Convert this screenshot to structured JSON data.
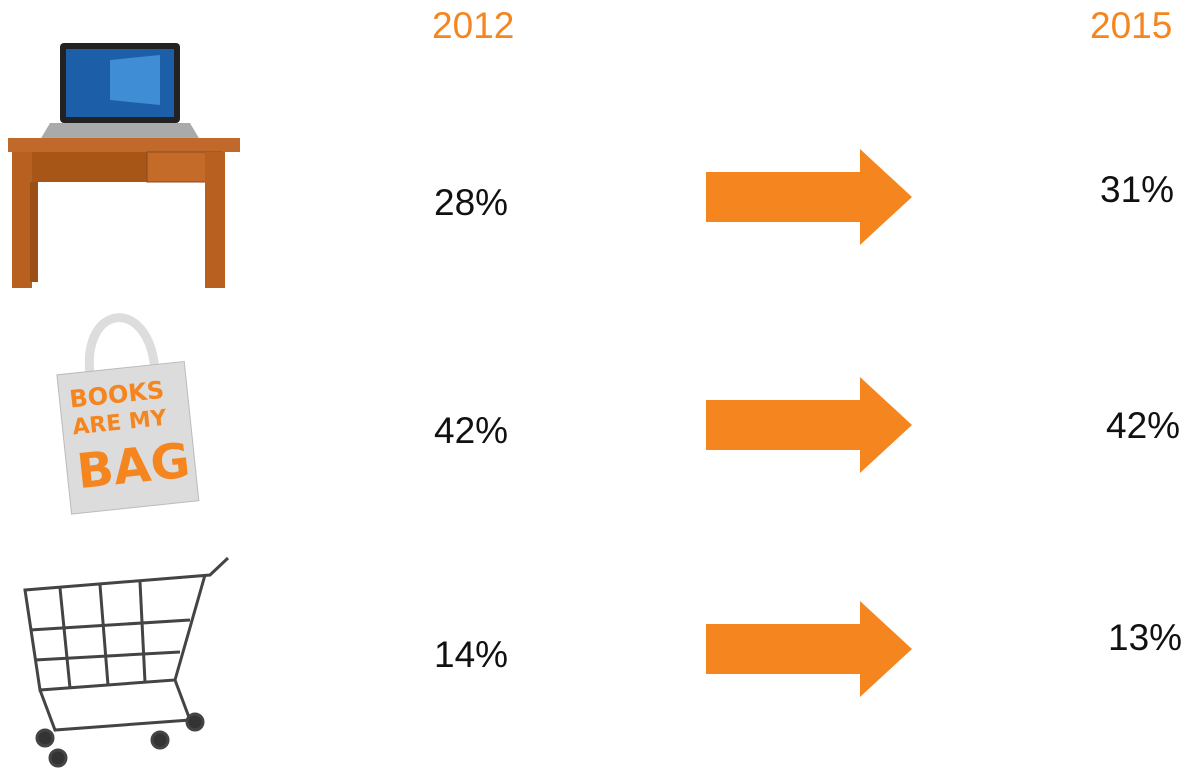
{
  "headers": {
    "from_year": "2012",
    "to_year": "2015"
  },
  "rows": [
    {
      "from": "28%",
      "to": "31%"
    },
    {
      "from": "42%",
      "to": "42%"
    },
    {
      "from": "14%",
      "to": "13%"
    }
  ],
  "bag_text": [
    "BOOKS",
    "ARE MY",
    "BAG"
  ]
}
